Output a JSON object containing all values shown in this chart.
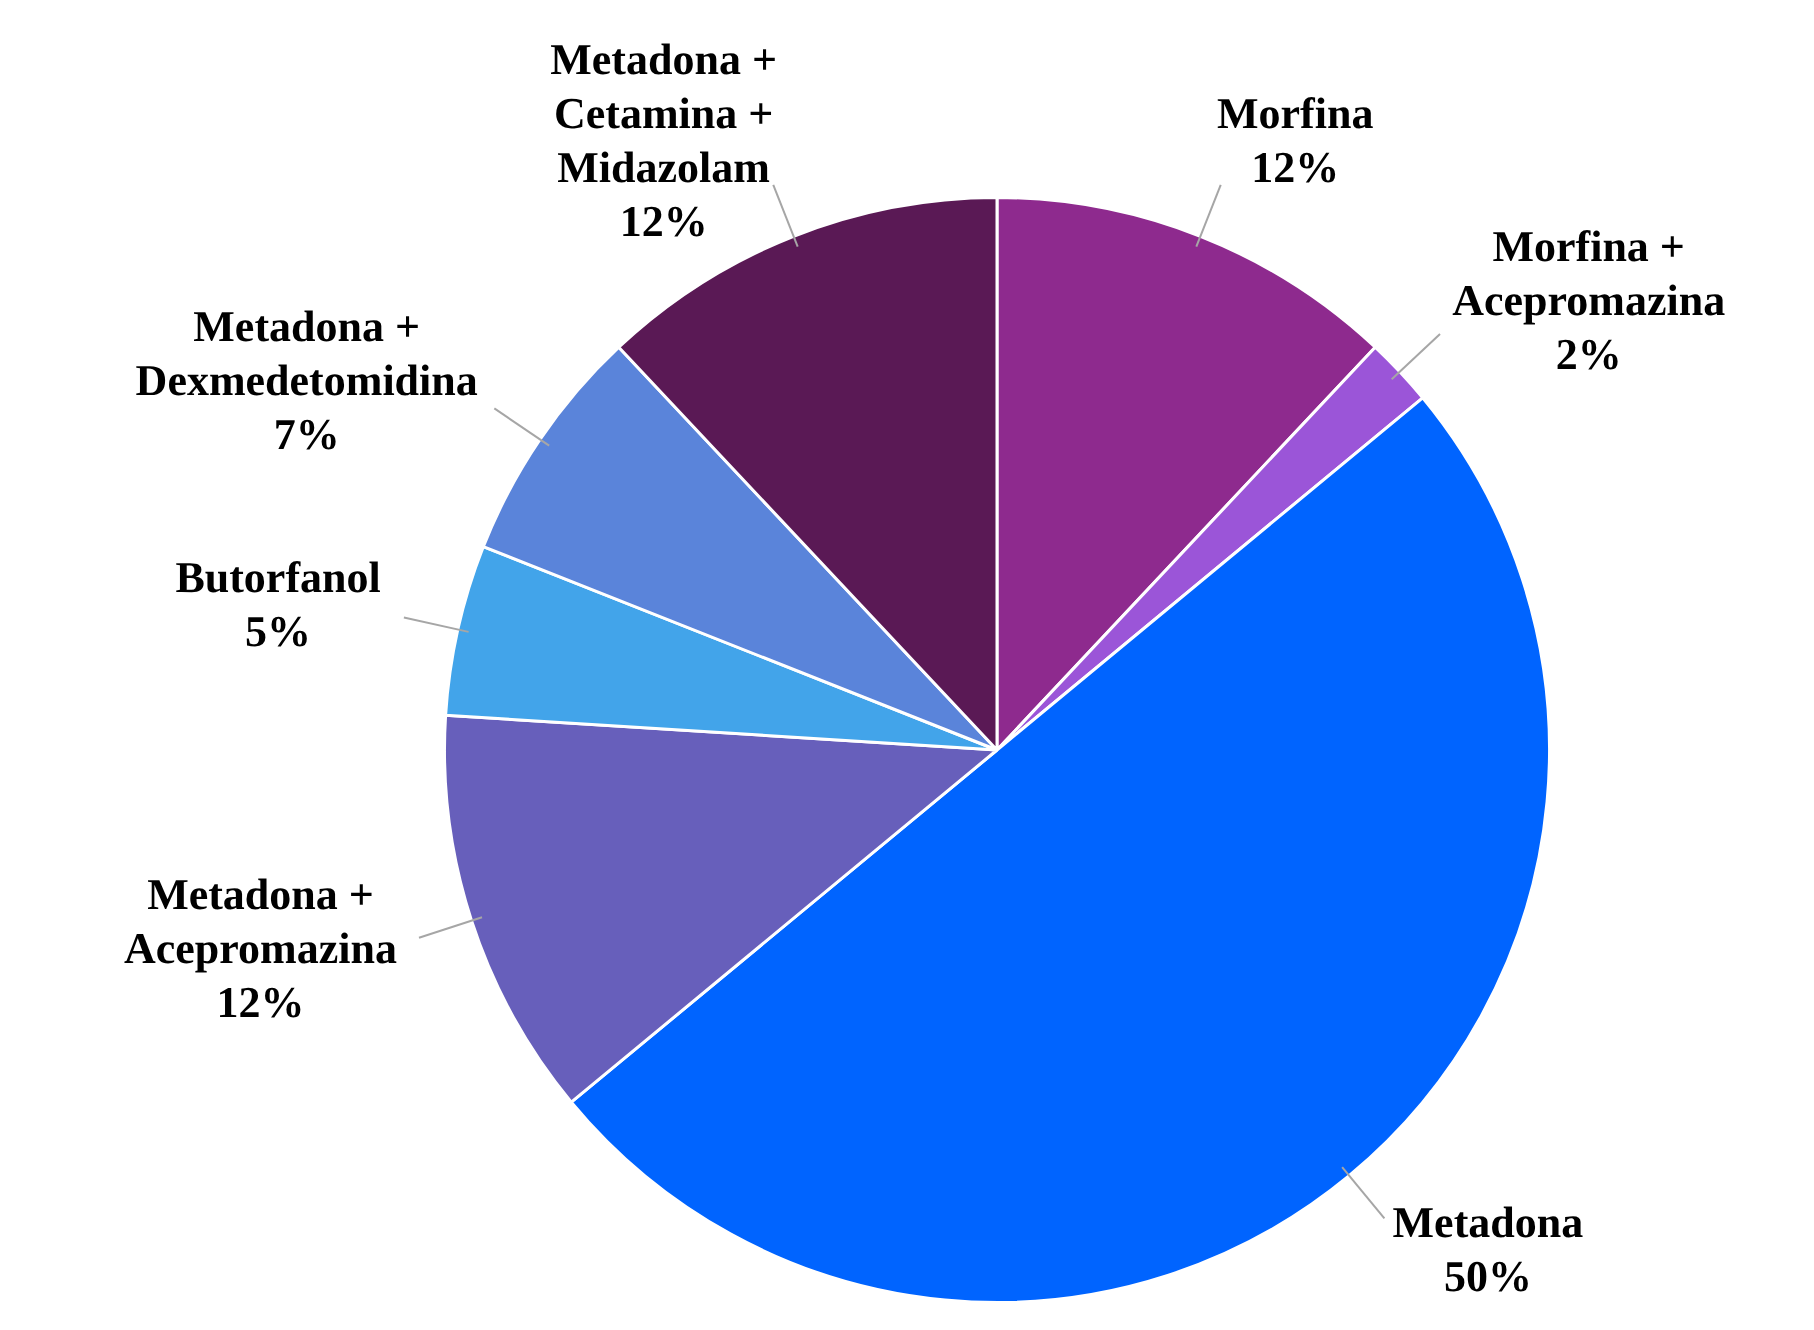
{
  "chart_data": {
    "type": "pie",
    "categories": [
      "Morfina",
      "Morfina + Acepromazina",
      "Metadona",
      "Metadona + Acepromazina",
      "Butorfanol",
      "Metadona + Dexmedetomidina",
      "Metadona + Cetamina + Midazolam"
    ],
    "values": [
      12,
      2,
      50,
      12,
      5,
      7,
      12
    ],
    "colors": [
      "#8e2a8e",
      "#9b55d8",
      "#0064ff",
      "#675fbb",
      "#42a4ea",
      "#5a84da",
      "#5a1955"
    ],
    "value_labels": [
      "12%",
      "2%",
      "50%",
      "12%",
      "5%",
      "7%",
      "12%"
    ],
    "legend": false
  }
}
